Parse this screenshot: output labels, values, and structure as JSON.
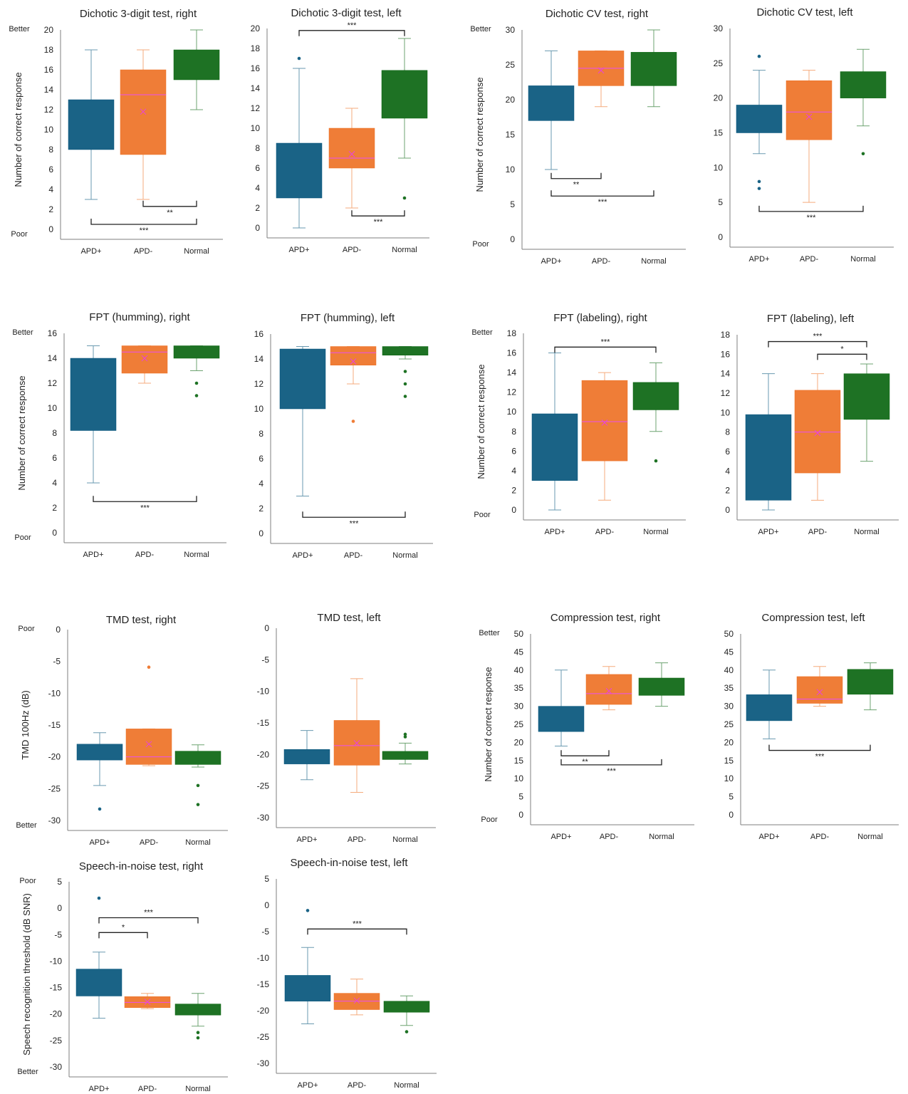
{
  "figure": {
    "background": "#ffffff"
  },
  "colors": {
    "APD+": "#1a6386",
    "APD-": "#ef7d37",
    "Normal": "#1e7224"
  },
  "chart_data": [
    {
      "id": "p1",
      "type": "box",
      "title": "Dichotic 3-digit test, right",
      "ylabel": "Number of correct response",
      "top_label": "Better",
      "bottom_label": "Poor",
      "ylim": [
        0,
        20
      ],
      "yticks": [
        "20",
        "18",
        "16",
        "14",
        "12",
        "10",
        "8",
        "6",
        "4",
        "2",
        "0"
      ],
      "categories": [
        "APD+",
        "APD-",
        "Normal"
      ],
      "boxes": [
        {
          "group": "APD+",
          "min": 3,
          "q1": 8,
          "median": 11.5,
          "q3": 13,
          "max": 18,
          "mean": 10.6,
          "outliers": []
        },
        {
          "group": "APD-",
          "min": 3,
          "q1": 7.5,
          "median": 13.5,
          "q3": 16,
          "max": 18,
          "mean": 11.8,
          "outliers": []
        },
        {
          "group": "Normal",
          "min": 12,
          "q1": 15,
          "median": 17,
          "q3": 18,
          "max": 20,
          "mean": 16.3,
          "outliers": []
        }
      ],
      "significance": [
        {
          "from": "APD-",
          "to": "Normal",
          "value": 2.3,
          "label": "**"
        },
        {
          "from": "APD+",
          "to": "Normal",
          "value": 0.5,
          "label": "***"
        }
      ]
    },
    {
      "id": "p2",
      "type": "box",
      "title": "Dichotic 3-digit test, left",
      "ylabel": "",
      "top_label": "",
      "bottom_label": "",
      "ylim": [
        0,
        20
      ],
      "yticks": [
        "20",
        "18",
        "16",
        "14",
        "12",
        "10",
        "8",
        "6",
        "4",
        "2",
        "0"
      ],
      "categories": [
        "APD+",
        "APD-",
        "Normal"
      ],
      "boxes": [
        {
          "group": "APD+",
          "min": 0,
          "q1": 3,
          "median": 4,
          "q3": 8.5,
          "max": 16,
          "mean": 5.9,
          "outliers": [
            17
          ]
        },
        {
          "group": "APD-",
          "min": 2,
          "q1": 6,
          "median": 7,
          "q3": 10,
          "max": 12,
          "mean": 7.4,
          "outliers": []
        },
        {
          "group": "Normal",
          "min": 7,
          "q1": 11,
          "median": 14,
          "q3": 15.8,
          "max": 19,
          "mean": 13.1,
          "outliers": [
            3
          ]
        }
      ],
      "significance": [
        {
          "from": "APD+",
          "to": "Normal",
          "value": 19.8,
          "label": "***"
        },
        {
          "from": "APD-",
          "to": "Normal",
          "value": 1.2,
          "label": "***"
        }
      ]
    },
    {
      "id": "p3",
      "type": "box",
      "title": "Dichotic CV test, right",
      "ylabel": "Number of correct response",
      "top_label": "Better",
      "bottom_label": "Poor",
      "ylim": [
        0,
        30
      ],
      "yticks": [
        "30",
        "25",
        "20",
        "15",
        "10",
        "5",
        "0"
      ],
      "categories": [
        "APD+",
        "APD-",
        "Normal"
      ],
      "boxes": [
        {
          "group": "APD+",
          "min": 10,
          "q1": 17,
          "median": 20,
          "q3": 22,
          "max": 27,
          "mean": 19.4,
          "outliers": []
        },
        {
          "group": "APD-",
          "min": 19,
          "q1": 22,
          "median": 24.5,
          "q3": 27,
          "max": 27,
          "mean": 24.2,
          "outliers": []
        },
        {
          "group": "Normal",
          "min": 19,
          "q1": 22,
          "median": 24,
          "q3": 26.8,
          "max": 30,
          "mean": 24.1,
          "outliers": []
        }
      ],
      "significance": [
        {
          "from": "APD+",
          "to": "APD-",
          "value": 8.7,
          "label": "**"
        },
        {
          "from": "APD+",
          "to": "Normal",
          "value": 6.2,
          "label": "***"
        }
      ]
    },
    {
      "id": "p4",
      "type": "box",
      "title": "Dichotic CV test, left",
      "ylabel": "",
      "top_label": "",
      "bottom_label": "",
      "ylim": [
        0,
        30
      ],
      "yticks": [
        "30",
        "25",
        "20",
        "15",
        "10",
        "5",
        "0"
      ],
      "categories": [
        "APD+",
        "APD-",
        "Normal"
      ],
      "boxes": [
        {
          "group": "APD+",
          "min": 12,
          "q1": 15,
          "median": 18,
          "q3": 19,
          "max": 24,
          "mean": 17.3,
          "outliers": [
            26,
            8,
            7
          ]
        },
        {
          "group": "APD-",
          "min": 5,
          "q1": 14,
          "median": 18,
          "q3": 22.5,
          "max": 24,
          "mean": 17.3,
          "outliers": []
        },
        {
          "group": "Normal",
          "min": 16,
          "q1": 20,
          "median": 21.5,
          "q3": 23.8,
          "max": 27,
          "mean": 21.4,
          "outliers": [
            12
          ]
        }
      ],
      "significance": [
        {
          "from": "APD+",
          "to": "Normal",
          "value": 3.7,
          "label": "***"
        }
      ]
    },
    {
      "id": "p5",
      "type": "box",
      "title": "FPT (humming), right",
      "ylabel": "Number of correct response",
      "top_label": "Better",
      "bottom_label": "Poor",
      "ylim": [
        0,
        16
      ],
      "yticks": [
        "16",
        "14",
        "12",
        "10",
        "8",
        "6",
        "4",
        "2",
        "0"
      ],
      "categories": [
        "APD+",
        "APD-",
        "Normal"
      ],
      "boxes": [
        {
          "group": "APD+",
          "min": 4,
          "q1": 8.2,
          "median": 13,
          "q3": 14,
          "max": 15,
          "mean": 11.4,
          "outliers": []
        },
        {
          "group": "APD-",
          "min": 12,
          "q1": 12.8,
          "median": 14.5,
          "q3": 15,
          "max": 15,
          "mean": 14,
          "outliers": []
        },
        {
          "group": "Normal",
          "min": 13,
          "q1": 14,
          "median": 14.5,
          "q3": 15,
          "max": 15,
          "mean": 14.5,
          "outliers": [
            12,
            11
          ]
        }
      ],
      "significance": [
        {
          "from": "APD+",
          "to": "Normal",
          "value": 2.5,
          "label": "***"
        }
      ]
    },
    {
      "id": "p6",
      "type": "box",
      "title": "FPT (humming), left",
      "ylabel": "",
      "top_label": "",
      "bottom_label": "",
      "ylim": [
        0,
        16
      ],
      "yticks": [
        "16",
        "14",
        "12",
        "10",
        "8",
        "6",
        "4",
        "2",
        "0"
      ],
      "categories": [
        "APD+",
        "APD-",
        "Normal"
      ],
      "boxes": [
        {
          "group": "APD+",
          "min": 3,
          "q1": 10,
          "median": 12,
          "q3": 14.8,
          "max": 15,
          "mean": 11.4,
          "outliers": []
        },
        {
          "group": "APD-",
          "min": 12,
          "q1": 13.5,
          "median": 14.5,
          "q3": 15,
          "max": 15,
          "mean": 13.8,
          "outliers": [
            9
          ]
        },
        {
          "group": "Normal",
          "min": 14,
          "q1": 14.3,
          "median": 14.6,
          "q3": 15,
          "max": 15,
          "mean": 14.6,
          "outliers": [
            13,
            12,
            11
          ]
        }
      ],
      "significance": [
        {
          "from": "APD+",
          "to": "Normal",
          "value": 1.3,
          "label": "***"
        }
      ]
    },
    {
      "id": "p7",
      "type": "box",
      "title": "FPT (labeling), right",
      "ylabel": "Number of correct response",
      "top_label": "Better",
      "bottom_label": "Poor",
      "ylim": [
        0,
        18
      ],
      "yticks": [
        "18",
        "16",
        "14",
        "12",
        "10",
        "8",
        "6",
        "4",
        "2",
        "0"
      ],
      "categories": [
        "APD+",
        "APD-",
        "Normal"
      ],
      "boxes": [
        {
          "group": "APD+",
          "min": 0,
          "q1": 3,
          "median": 6.5,
          "q3": 9.8,
          "max": 16,
          "mean": 6.3,
          "outliers": []
        },
        {
          "group": "APD-",
          "min": 1,
          "q1": 5,
          "median": 9,
          "q3": 13.2,
          "max": 14,
          "mean": 8.9,
          "outliers": []
        },
        {
          "group": "Normal",
          "min": 8,
          "q1": 10.2,
          "median": 12,
          "q3": 13,
          "max": 15,
          "mean": 12,
          "outliers": [
            5
          ]
        }
      ],
      "significance": [
        {
          "from": "APD+",
          "to": "Normal",
          "value": 16.6,
          "label": "***"
        }
      ]
    },
    {
      "id": "p8",
      "type": "box",
      "title": "FPT (labeling), left",
      "ylabel": "",
      "top_label": "",
      "bottom_label": "",
      "ylim": [
        0,
        18
      ],
      "yticks": [
        "18",
        "16",
        "14",
        "12",
        "10",
        "8",
        "6",
        "4",
        "2",
        "0"
      ],
      "categories": [
        "APD+",
        "APD-",
        "Normal"
      ],
      "boxes": [
        {
          "group": "APD+",
          "min": 0,
          "q1": 1,
          "median": 6,
          "q3": 9.8,
          "max": 14,
          "mean": 5.7,
          "outliers": []
        },
        {
          "group": "APD-",
          "min": 1,
          "q1": 3.8,
          "median": 8,
          "q3": 12.3,
          "max": 14,
          "mean": 7.9,
          "outliers": []
        },
        {
          "group": "Normal",
          "min": 5,
          "q1": 9.3,
          "median": 12,
          "q3": 14,
          "max": 15,
          "mean": 11.8,
          "outliers": []
        }
      ],
      "significance": [
        {
          "from": "APD+",
          "to": "Normal",
          "value": 17.3,
          "label": "***"
        },
        {
          "from": "APD-",
          "to": "Normal",
          "value": 16,
          "label": "*"
        }
      ]
    },
    {
      "id": "p9",
      "type": "box",
      "title": "TMD test, right",
      "ylabel": "TMD 100Hz (dB)",
      "top_label": "Poor",
      "bottom_label": "Better",
      "ylim": [
        -30,
        0
      ],
      "yticks": [
        "0",
        "-5",
        "-10",
        "-15",
        "-20",
        "-25",
        "-30"
      ],
      "categories": [
        "APD+",
        "APD-",
        "Normal"
      ],
      "boxes": [
        {
          "group": "APD+",
          "min": -24.5,
          "q1": -20.5,
          "median": -19.3,
          "q3": -18,
          "max": -16.2,
          "mean": -19.5,
          "outliers": [
            -28.2
          ]
        },
        {
          "group": "APD-",
          "min": -21.4,
          "q1": -21.2,
          "median": -20,
          "q3": -15.6,
          "max": -15.6,
          "mean": -18,
          "outliers": [
            -5.9
          ]
        },
        {
          "group": "Normal",
          "min": -21.6,
          "q1": -21.2,
          "median": -20.4,
          "q3": -19.1,
          "max": -18.1,
          "mean": -20.1,
          "outliers": [
            -24.5,
            -27.5
          ]
        }
      ],
      "significance": []
    },
    {
      "id": "p10",
      "type": "box",
      "title": "TMD test, left",
      "ylabel": "",
      "top_label": "",
      "bottom_label": "",
      "ylim": [
        -30,
        0
      ],
      "yticks": [
        "0",
        "-5",
        "-10",
        "-15",
        "-20",
        "-25",
        "-30"
      ],
      "categories": [
        "APD+",
        "APD-",
        "Normal"
      ],
      "boxes": [
        {
          "group": "APD+",
          "min": -24,
          "q1": -21.5,
          "median": -20.3,
          "q3": -19.2,
          "max": -16.2,
          "mean": -20.3,
          "outliers": []
        },
        {
          "group": "APD-",
          "min": -26,
          "q1": -21.7,
          "median": -18.6,
          "q3": -14.6,
          "max": -8,
          "mean": -18.2,
          "outliers": []
        },
        {
          "group": "Normal",
          "min": -21.5,
          "q1": -20.8,
          "median": -20.2,
          "q3": -19.5,
          "max": -18.2,
          "mean": -20.1,
          "outliers": [
            -16.8,
            -17.2
          ]
        }
      ],
      "significance": []
    },
    {
      "id": "p11",
      "type": "box",
      "title": "Compression test, right",
      "ylabel": "Number of correct response",
      "top_label": "Better",
      "bottom_label": "Poor",
      "ylim": [
        0,
        50
      ],
      "yticks": [
        "50",
        "45",
        "40",
        "35",
        "30",
        "25",
        "20",
        "15",
        "10",
        "5",
        "0"
      ],
      "categories": [
        "APD+",
        "APD-",
        "Normal"
      ],
      "boxes": [
        {
          "group": "APD+",
          "min": 19,
          "q1": 23,
          "median": 27,
          "q3": 30,
          "max": 40,
          "mean": 27.1,
          "outliers": []
        },
        {
          "group": "APD-",
          "min": 29,
          "q1": 30.5,
          "median": 33.5,
          "q3": 38.8,
          "max": 41,
          "mean": 34.2,
          "outliers": []
        },
        {
          "group": "Normal",
          "min": 30,
          "q1": 33,
          "median": 35,
          "q3": 37.8,
          "max": 42,
          "mean": 35.2,
          "outliers": []
        }
      ],
      "significance": [
        {
          "from": "APD+",
          "to": "APD-",
          "value": 16.3,
          "label": "**"
        },
        {
          "from": "APD+",
          "to": "Normal",
          "value": 13.8,
          "label": "***"
        }
      ]
    },
    {
      "id": "p12",
      "type": "box",
      "title": "Compression test, left",
      "ylabel": "",
      "top_label": "",
      "bottom_label": "",
      "ylim": [
        0,
        50
      ],
      "yticks": [
        "50",
        "45",
        "40",
        "35",
        "30",
        "25",
        "20",
        "15",
        "10",
        "5",
        "0"
      ],
      "categories": [
        "APD+",
        "APD-",
        "Normal"
      ],
      "boxes": [
        {
          "group": "APD+",
          "min": 21,
          "q1": 26,
          "median": 30,
          "q3": 33.2,
          "max": 40,
          "mean": 29.7,
          "outliers": []
        },
        {
          "group": "APD-",
          "min": 30,
          "q1": 30.8,
          "median": 32,
          "q3": 38.2,
          "max": 41,
          "mean": 33.9,
          "outliers": []
        },
        {
          "group": "Normal",
          "min": 29,
          "q1": 33.3,
          "median": 36.5,
          "q3": 40.2,
          "max": 42,
          "mean": 36.2,
          "outliers": []
        }
      ],
      "significance": [
        {
          "from": "APD+",
          "to": "Normal",
          "value": 17.8,
          "label": "***"
        }
      ]
    },
    {
      "id": "p13",
      "type": "box",
      "title": "Speech-in-noise test, right",
      "ylabel": "Speech recognition threshold (dB SNR)",
      "top_label": "Poor",
      "bottom_label": "Better",
      "ylim": [
        -30,
        5
      ],
      "yticks": [
        "5",
        "0",
        "-5",
        "-10",
        "-15",
        "-20",
        "-25",
        "-30"
      ],
      "categories": [
        "APD+",
        "APD-",
        "Normal"
      ],
      "boxes": [
        {
          "group": "APD+",
          "min": -20.8,
          "q1": -16.6,
          "median": -15.2,
          "q3": -11.5,
          "max": -8.3,
          "mean": -14.2,
          "outliers": [
            1.9
          ]
        },
        {
          "group": "APD-",
          "min": -19,
          "q1": -18.8,
          "median": -17.8,
          "q3": -16.7,
          "max": -16.1,
          "mean": -17.7,
          "outliers": []
        },
        {
          "group": "Normal",
          "min": -22.3,
          "q1": -20.2,
          "median": -19.3,
          "q3": -18.1,
          "max": -16.1,
          "mean": -19.3,
          "outliers": [
            -23.5,
            -24.5
          ]
        }
      ],
      "significance": [
        {
          "from": "APD+",
          "to": "Normal",
          "value": -1.8,
          "label": "***"
        },
        {
          "from": "APD+",
          "to": "APD-",
          "value": -4.6,
          "label": "*"
        }
      ]
    },
    {
      "id": "p14",
      "type": "box",
      "title": "Speech-in-noise test, left",
      "ylabel": "",
      "top_label": "",
      "bottom_label": "",
      "ylim": [
        -30,
        5
      ],
      "yticks": [
        "5",
        "0",
        "-5",
        "-10",
        "-15",
        "-20",
        "-25",
        "-30"
      ],
      "categories": [
        "APD+",
        "APD-",
        "Normal"
      ],
      "boxes": [
        {
          "group": "APD+",
          "min": -22.5,
          "q1": -18.2,
          "median": -15.7,
          "q3": -13.3,
          "max": -8,
          "mean": -15.3,
          "outliers": [
            -1
          ]
        },
        {
          "group": "APD-",
          "min": -20.8,
          "q1": -19.8,
          "median": -18.2,
          "q3": -16.7,
          "max": -14,
          "mean": -18.1,
          "outliers": []
        },
        {
          "group": "Normal",
          "min": -22.8,
          "q1": -20.3,
          "median": -19.3,
          "q3": -18.2,
          "max": -17.2,
          "mean": -19.3,
          "outliers": [
            -24
          ]
        }
      ],
      "significance": [
        {
          "from": "APD+",
          "to": "Normal",
          "value": -4.5,
          "label": "***"
        }
      ]
    }
  ]
}
